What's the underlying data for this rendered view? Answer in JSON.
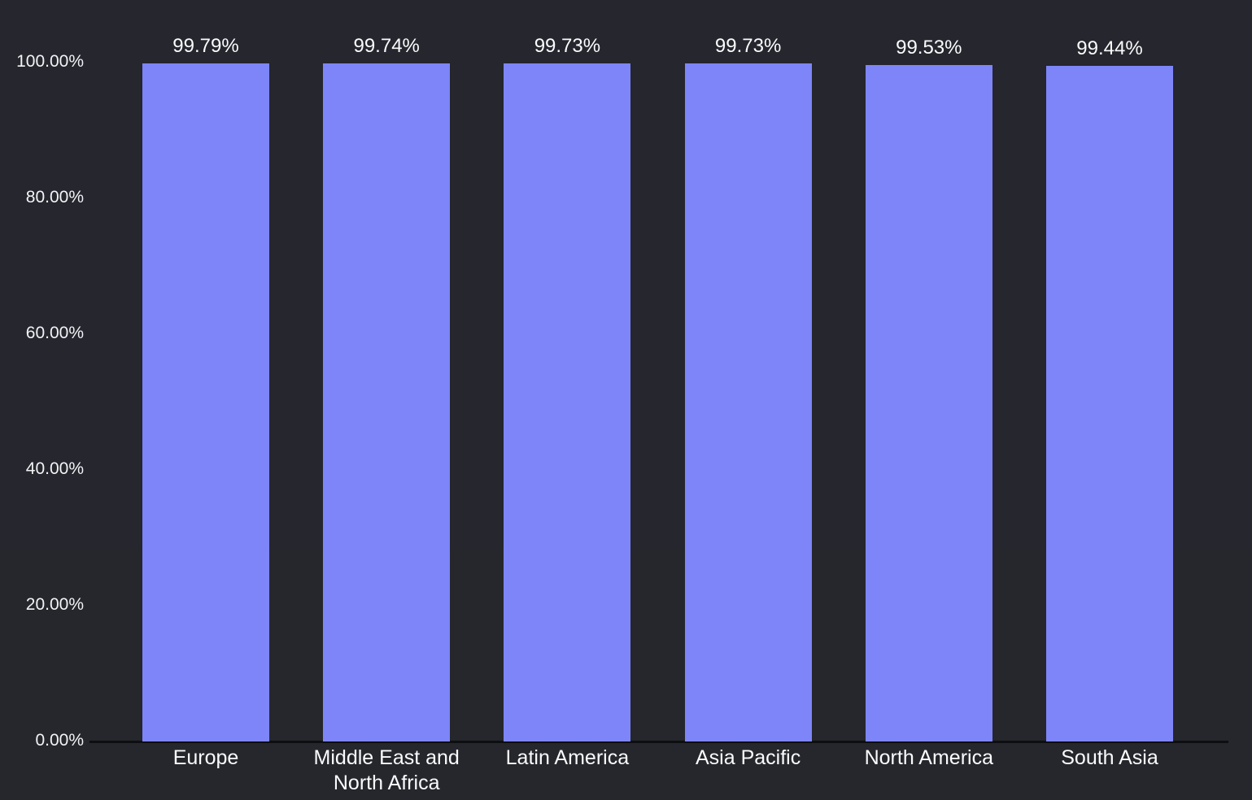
{
  "chart_data": {
    "type": "bar",
    "categories": [
      "Europe",
      "Middle East and North Africa",
      "Latin America",
      "Asia Pacific",
      "North America",
      "South Asia"
    ],
    "values": [
      99.79,
      99.74,
      99.73,
      99.73,
      99.53,
      99.44
    ],
    "value_labels": [
      "99.79%",
      "99.74%",
      "99.73%",
      "99.73%",
      "99.53%",
      "99.44%"
    ],
    "title": "",
    "xlabel": "",
    "ylabel": "",
    "ylim": [
      0,
      100
    ],
    "y_ticks": [
      {
        "value": 100,
        "label": "100.00%"
      },
      {
        "value": 80,
        "label": "80.00%"
      },
      {
        "value": 60,
        "label": "60.00%"
      },
      {
        "value": 40,
        "label": "40.00%"
      },
      {
        "value": 20,
        "label": "20.00%"
      },
      {
        "value": 0,
        "label": "0.00%"
      }
    ],
    "grid": false,
    "legend": "none",
    "colors": {
      "background": "#25262e",
      "background_lower": "#26272c",
      "bar": "#7d85f8",
      "axis_line": "#0d0e12",
      "tick_text": "#f2f3f5",
      "label_text": "#fafbfc"
    }
  }
}
